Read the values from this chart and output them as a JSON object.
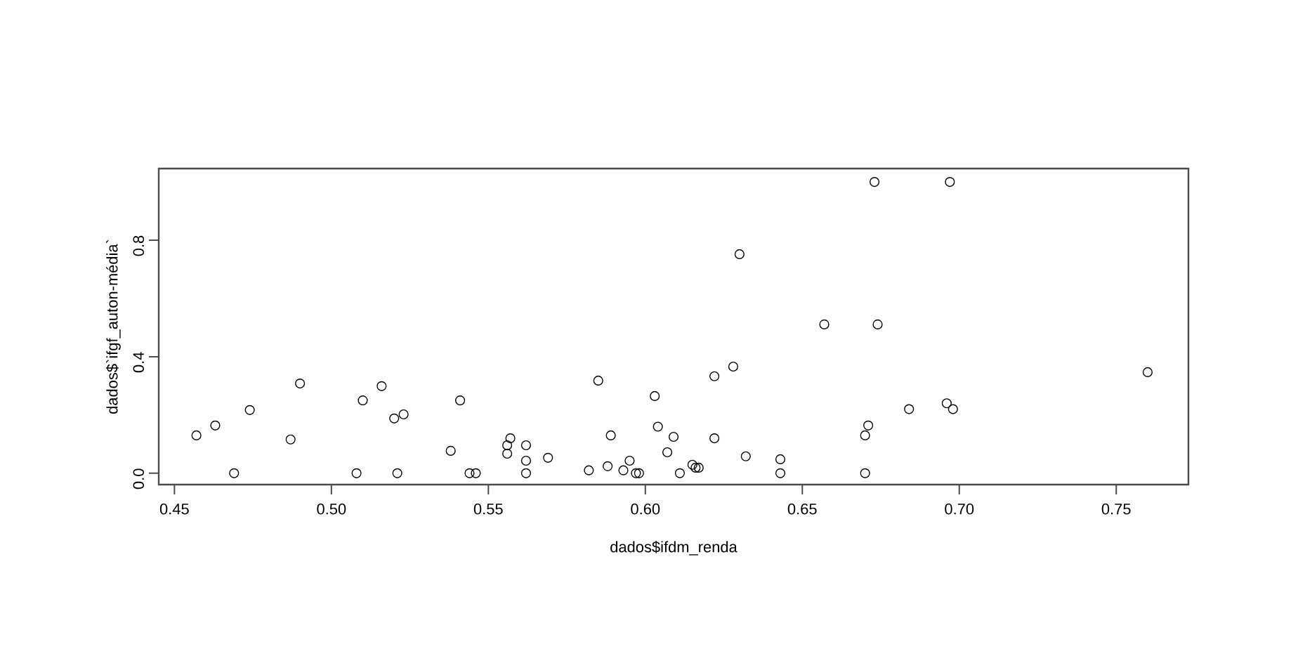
{
  "chart_data": {
    "type": "scatter",
    "xlabel": "dados$ifdm_renda",
    "ylabel": "dados$`ifgf_auton-média`",
    "marker": "circle",
    "grid": false,
    "color": "#000000",
    "xlim": [
      0.445,
      0.773
    ],
    "ylim": [
      -0.039,
      1.046
    ],
    "xticks": [
      {
        "value": 0.45,
        "label": "0.45"
      },
      {
        "value": 0.5,
        "label": "0.50"
      },
      {
        "value": 0.55,
        "label": "0.55"
      },
      {
        "value": 0.6,
        "label": "0.60"
      },
      {
        "value": 0.65,
        "label": "0.65"
      },
      {
        "value": 0.7,
        "label": "0.70"
      },
      {
        "value": 0.75,
        "label": "0.75"
      }
    ],
    "yticks": [
      {
        "value": 0,
        "label": "0.0"
      },
      {
        "value": 0.4,
        "label": "0.4"
      },
      {
        "value": 0.8,
        "label": "0.8"
      }
    ],
    "x": [
      0.457,
      0.463,
      0.469,
      0.474,
      0.487,
      0.49,
      0.508,
      0.51,
      0.516,
      0.52,
      0.523,
      0.521,
      0.538,
      0.541,
      0.544,
      0.546,
      0.556,
      0.556,
      0.557,
      0.562,
      0.562,
      0.562,
      0.569,
      0.582,
      0.585,
      0.588,
      0.589,
      0.593,
      0.595,
      0.597,
      0.598,
      0.603,
      0.604,
      0.607,
      0.609,
      0.611,
      0.615,
      0.616,
      0.617,
      0.622,
      0.622,
      0.628,
      0.63,
      0.632,
      0.643,
      0.643,
      0.657,
      0.673,
      0.674,
      0.67,
      0.671,
      0.67,
      0.697,
      0.684,
      0.696,
      0.698,
      0.76
    ],
    "values": [
      0.13,
      0.164,
      0.0,
      0.217,
      0.116,
      0.308,
      0.0,
      0.25,
      0.299,
      0.188,
      0.202,
      0.0,
      0.077,
      0.25,
      0.0,
      0.0,
      0.067,
      0.096,
      0.12,
      0.096,
      0.043,
      0.0,
      0.053,
      0.01,
      0.318,
      0.024,
      0.13,
      0.01,
      0.043,
      0.0,
      0.0,
      0.265,
      0.16,
      0.072,
      0.125,
      0.0,
      0.029,
      0.019,
      0.019,
      0.333,
      0.12,
      0.366,
      0.752,
      0.058,
      0.048,
      0.0,
      0.511,
      1.0,
      0.511,
      0.13,
      0.164,
      0.0,
      1.0,
      0.22,
      0.24,
      0.22,
      0.347
    ]
  }
}
